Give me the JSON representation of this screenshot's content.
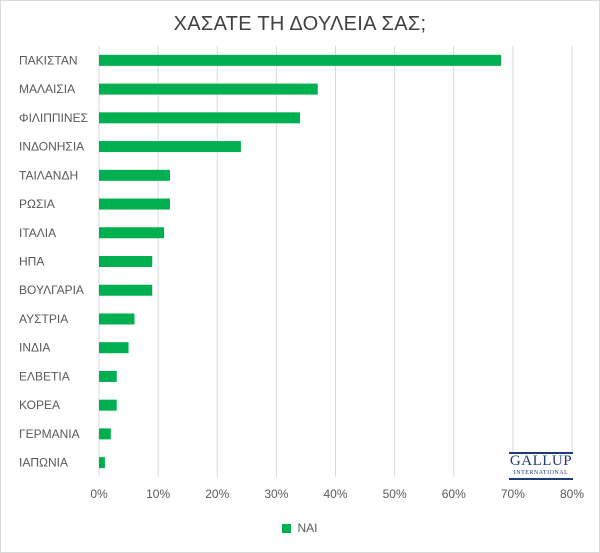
{
  "chart_data": {
    "type": "bar",
    "orientation": "horizontal",
    "title": "ΧΑΣΑΤΕ ΤΗ ΔΟΥΛΕΙΑ ΣΑΣ;",
    "categories": [
      "ΠΑΚΙΣΤΑΝ",
      "ΜΑΛΑΙΣΙΑ",
      "ΦΙΛΙΠΠΙΝΕΣ",
      "ΙΝΔΟΝΗΣΙΑ",
      "ΤΑΙΛΑΝΔΗ",
      "ΡΩΣΙΑ",
      "ΙΤΑΛΙΑ",
      "ΗΠΑ",
      "ΒΟΥΛΓΑΡΙΑ",
      "ΑΥΣΤΡΙΑ",
      "ΙΝΔΙΑ",
      "ΕΛΒΕΤΙΑ",
      "ΚΟΡΕΑ",
      "ΓΕΡΜΑΝΙΑ",
      "ΙΑΠΩΝΙΑ"
    ],
    "series": [
      {
        "name": "ΝΑΙ",
        "color": "#00b050",
        "values": [
          68,
          37,
          34,
          24,
          12,
          12,
          11,
          9,
          9,
          6,
          5,
          3,
          3,
          2,
          1
        ]
      }
    ],
    "xlim": [
      0,
      80
    ],
    "xticks": [
      "0%",
      "10%",
      "20%",
      "30%",
      "40%",
      "50%",
      "60%",
      "70%",
      "80%"
    ],
    "grid": true,
    "legend_position": "bottom"
  },
  "logo": {
    "main": "GALLUP",
    "sub": "INTERNATIONAL"
  }
}
